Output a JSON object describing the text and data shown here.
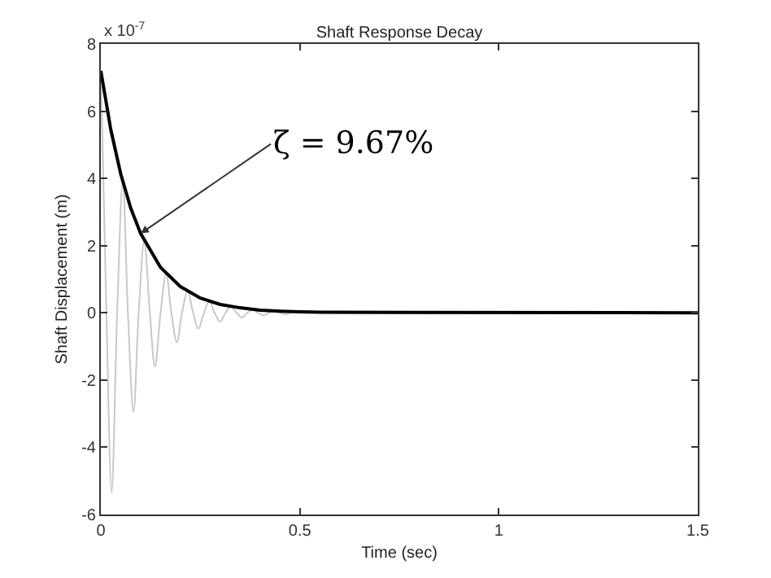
{
  "chart_data": {
    "type": "line",
    "title": "Shaft Response Decay",
    "xlabel": "Time (sec)",
    "ylabel": "Shaft Displacement (m)",
    "xlim": [
      0,
      1.5
    ],
    "xticks": [
      0,
      0.5,
      1,
      1.5
    ],
    "ylim": [
      -6,
      8
    ],
    "yticks": [
      -6,
      -4,
      -2,
      0,
      2,
      4,
      6,
      8
    ],
    "marker": "none",
    "line_style": "solid",
    "series": [
      {
        "color": "#c8c8c8",
        "x": [
          0,
          0.014,
          0.027,
          0.041,
          0.055,
          0.068,
          0.082,
          0.095,
          0.109,
          0.123,
          0.136,
          0.15,
          0.164,
          0.177,
          0.191,
          0.204,
          0.218,
          0.232,
          0.245,
          0.259,
          0.273,
          0.286,
          0.3,
          0.313,
          0.327,
          0.341,
          0.354,
          0.368,
          0.382,
          0.395,
          0.409,
          0.422,
          0.436,
          0.45,
          0.463,
          0.477,
          0.491,
          0.55,
          1.5
        ],
        "values": [
          7.2,
          0,
          -5.35,
          0,
          3.92,
          0,
          -2.96,
          0,
          2.14,
          0,
          -1.6,
          0,
          1.17,
          0,
          -0.87,
          0,
          0.64,
          0,
          -0.48,
          0,
          0.35,
          0,
          -0.26,
          0,
          0.19,
          0,
          -0.14,
          0,
          0.1,
          0,
          -0.08,
          0,
          0.06,
          0,
          -0.04,
          0,
          0.03,
          0,
          0
        ]
      },
      {
        "color": "#000000",
        "x": [
          0,
          0.025,
          0.05,
          0.075,
          0.1,
          0.15,
          0.2,
          0.25,
          0.3,
          0.35,
          0.4,
          0.45,
          0.5,
          0.55,
          1.5
        ],
        "values": [
          7.2,
          5.45,
          4.13,
          3.12,
          2.36,
          1.35,
          0.78,
          0.44,
          0.25,
          0.15,
          0.08,
          0.05,
          0.03,
          0.02,
          0
        ]
      }
    ],
    "annotations": [
      "x 10$^{-7}$",
      {
        "text": "ζ = 9.67%",
        "x": 0.1,
        "y": 2.36
      }
    ]
  }
}
